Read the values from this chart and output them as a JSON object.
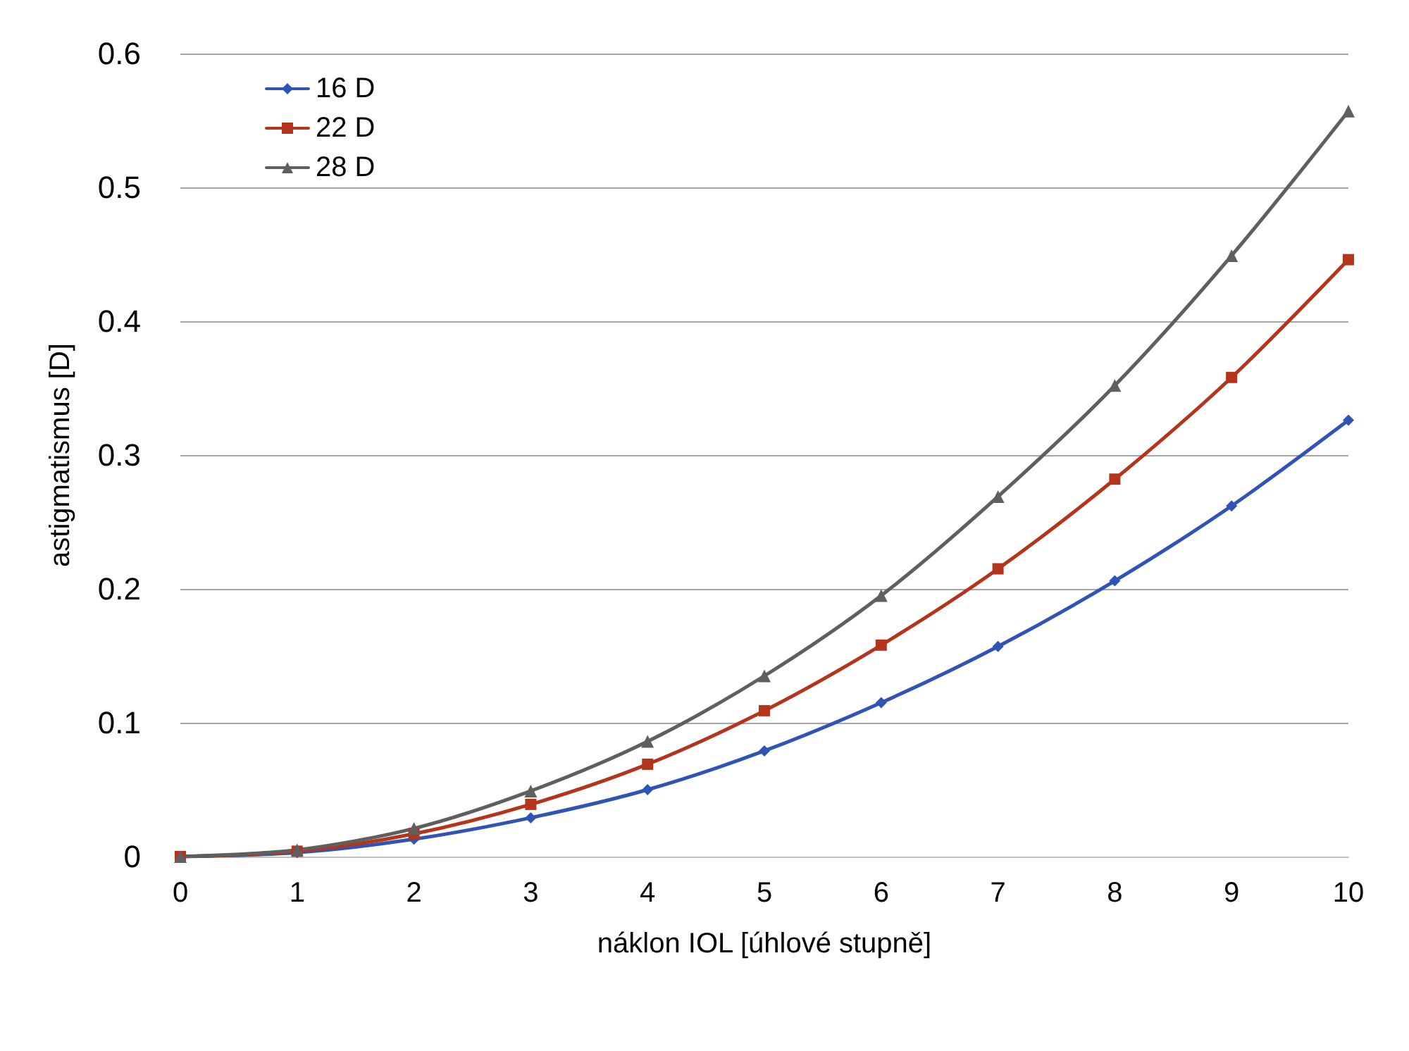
{
  "chart_data": {
    "type": "line",
    "xlabel": "náklon IOL [úhlové stupně]",
    "ylabel": "astigmatismus [D]",
    "x": [
      0,
      1,
      2,
      3,
      4,
      5,
      6,
      7,
      8,
      9,
      10
    ],
    "series": [
      {
        "name": "16 D",
        "color": "#2f54b5",
        "marker": "diamond",
        "values": [
          0,
          0.003,
          0.013,
          0.029,
          0.05,
          0.079,
          0.115,
          0.157,
          0.206,
          0.262,
          0.326
        ]
      },
      {
        "name": "22 D",
        "color": "#b5341c",
        "marker": "square",
        "values": [
          0,
          0.004,
          0.017,
          0.039,
          0.069,
          0.109,
          0.158,
          0.215,
          0.282,
          0.358,
          0.446
        ]
      },
      {
        "name": "28 D",
        "color": "#5f5f5f",
        "marker": "triangle",
        "values": [
          0,
          0.005,
          0.021,
          0.049,
          0.086,
          0.135,
          0.195,
          0.269,
          0.352,
          0.449,
          0.557
        ]
      }
    ],
    "xlim": [
      0,
      10
    ],
    "xticks": [
      0,
      1,
      2,
      3,
      4,
      5,
      6,
      7,
      8,
      9,
      10
    ],
    "ylim": [
      0,
      0.6
    ],
    "yticks": [
      0,
      0.1,
      0.2,
      0.3,
      0.4,
      0.5,
      0.6
    ],
    "grid": "y",
    "legend": "top left",
    "line_style": "solid"
  }
}
